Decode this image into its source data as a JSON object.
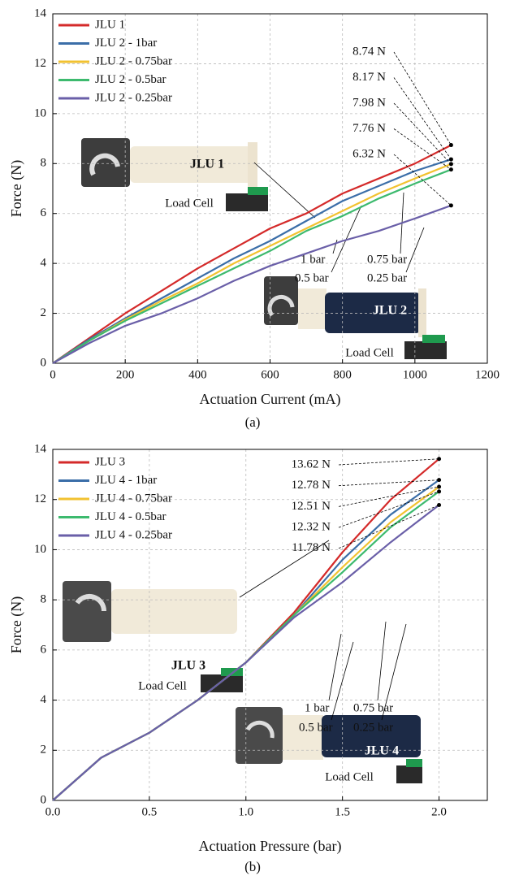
{
  "chart_data": [
    {
      "type": "line",
      "caption": "(a)",
      "xlabel": "Actuation Current (mA)",
      "ylabel": "Force (N)",
      "x": [
        0,
        100,
        200,
        300,
        400,
        500,
        600,
        700,
        800,
        900,
        1000,
        1100
      ],
      "xlim": [
        0,
        1200
      ],
      "xticks": [
        0,
        200,
        400,
        600,
        800,
        1000,
        1200
      ],
      "ylim": [
        0,
        14
      ],
      "yticks": [
        0,
        2,
        4,
        6,
        8,
        10,
        12,
        14
      ],
      "grid": true,
      "legend": "upper left",
      "series": [
        {
          "name": "JLU 1",
          "color": "#d42a2a",
          "values": [
            0,
            1.0,
            2.0,
            2.9,
            3.8,
            4.6,
            5.4,
            6.0,
            6.8,
            7.4,
            8.0,
            8.74
          ],
          "value_labels": [
            null,
            null,
            null,
            null,
            null,
            null,
            null,
            null,
            null,
            null,
            null,
            "8.74 N"
          ]
        },
        {
          "name": "JLU 2 - 1bar",
          "color": "#3b6ea8",
          "values": [
            0,
            0.95,
            1.8,
            2.6,
            3.4,
            4.2,
            4.9,
            5.7,
            6.5,
            7.1,
            7.7,
            8.17
          ],
          "value_labels": [
            null,
            null,
            null,
            null,
            null,
            null,
            null,
            null,
            null,
            null,
            null,
            "8.17 N"
          ]
        },
        {
          "name": "JLU 2 - 0.75bar",
          "color": "#f2c230",
          "values": [
            0,
            0.9,
            1.75,
            2.5,
            3.2,
            4.0,
            4.7,
            5.4,
            6.1,
            6.8,
            7.4,
            7.98
          ],
          "value_labels": [
            null,
            null,
            null,
            null,
            null,
            null,
            null,
            null,
            null,
            null,
            null,
            "7.98 N"
          ]
        },
        {
          "name": "JLU 2 - 0.5bar",
          "color": "#3dba6e",
          "values": [
            0,
            0.9,
            1.7,
            2.4,
            3.1,
            3.8,
            4.5,
            5.3,
            5.9,
            6.6,
            7.2,
            7.76
          ],
          "value_labels": [
            null,
            null,
            null,
            null,
            null,
            null,
            null,
            null,
            null,
            null,
            null,
            "7.76 N"
          ]
        },
        {
          "name": "JLU 2 - 0.25bar",
          "color": "#6a5fa8",
          "values": [
            0,
            0.8,
            1.5,
            2.0,
            2.6,
            3.3,
            3.9,
            4.4,
            4.9,
            5.3,
            5.8,
            6.32
          ],
          "value_labels": [
            null,
            null,
            null,
            null,
            null,
            null,
            null,
            null,
            null,
            null,
            null,
            "6.32 N"
          ]
        }
      ],
      "annotations": [
        "1 bar",
        "0.5 bar",
        "0.75 bar",
        "0.25 bar",
        "JLU 1",
        "JLU 2",
        "Load Cell",
        "Load Cell"
      ]
    },
    {
      "type": "line",
      "caption": "(b)",
      "xlabel": "Actuation Pressure (bar)",
      "ylabel": "Force (N)",
      "x": [
        0,
        0.25,
        0.5,
        0.75,
        1.0,
        1.25,
        1.5,
        1.75,
        2.0
      ],
      "xlim": [
        0,
        2.25
      ],
      "xticks": [
        {
          "value": 0,
          "label": "0.0"
        },
        0.5,
        {
          "value": 1,
          "label": "1.0"
        },
        1.5,
        {
          "value": 2,
          "label": "2.0"
        }
      ],
      "ylim": [
        0,
        14
      ],
      "yticks": [
        0,
        2,
        4,
        6,
        8,
        10,
        12,
        14
      ],
      "grid": true,
      "legend": "upper left",
      "series": [
        {
          "name": "JLU 3",
          "color": "#d42a2a",
          "values": [
            0,
            1.7,
            2.7,
            4.0,
            5.5,
            7.5,
            9.9,
            12.0,
            13.62
          ],
          "value_labels": [
            null,
            null,
            null,
            null,
            null,
            null,
            null,
            null,
            "13.62 N"
          ]
        },
        {
          "name": "JLU 4 - 1bar",
          "color": "#3b6ea8",
          "values": [
            0,
            1.7,
            2.7,
            4.0,
            5.5,
            7.4,
            9.6,
            11.4,
            12.78
          ],
          "value_labels": [
            null,
            null,
            null,
            null,
            null,
            null,
            null,
            null,
            "12.78 N"
          ]
        },
        {
          "name": "JLU 4 - 0.75bar",
          "color": "#f2c230",
          "values": [
            0,
            1.7,
            2.7,
            4.0,
            5.5,
            7.4,
            9.3,
            11.1,
            12.51
          ],
          "value_labels": [
            null,
            null,
            null,
            null,
            null,
            null,
            null,
            null,
            "12.51 N"
          ]
        },
        {
          "name": "JLU 4 - 0.5bar",
          "color": "#3dba6e",
          "values": [
            0,
            1.7,
            2.7,
            4.0,
            5.5,
            7.4,
            9.1,
            10.9,
            12.32
          ],
          "value_labels": [
            null,
            null,
            null,
            null,
            null,
            null,
            null,
            null,
            "12.32 N"
          ]
        },
        {
          "name": "JLU 4 - 0.25bar",
          "color": "#6a5fa8",
          "values": [
            0,
            1.7,
            2.7,
            4.0,
            5.5,
            7.3,
            8.7,
            10.3,
            11.78
          ],
          "value_labels": [
            null,
            null,
            null,
            null,
            null,
            null,
            null,
            null,
            "11.78 N"
          ]
        }
      ],
      "annotations": [
        "1 bar",
        "0.5 bar",
        "0.75 bar",
        "0.25 bar",
        "JLU 3",
        "JLU 4",
        "Load Cell",
        "Load Cell"
      ]
    }
  ]
}
